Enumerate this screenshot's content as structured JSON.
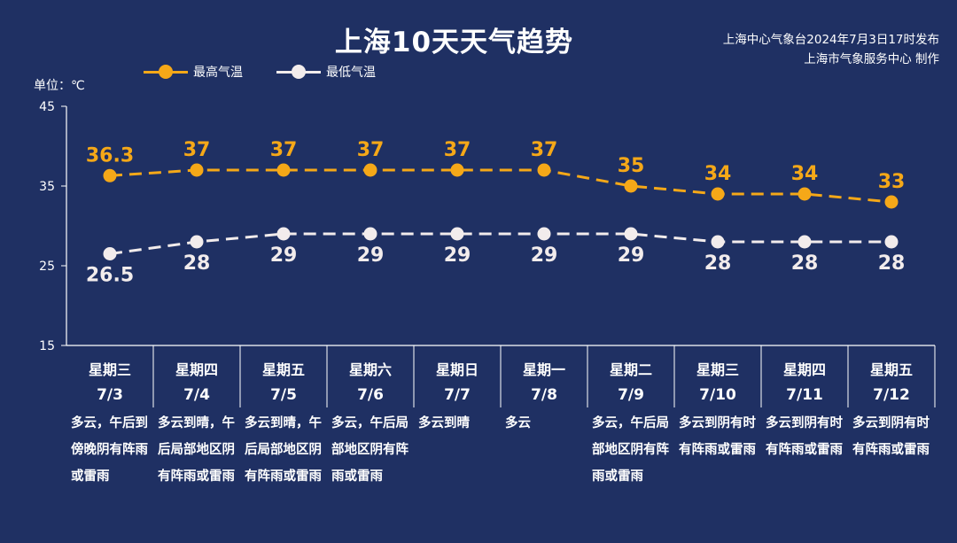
{
  "header": {
    "title": "上海10天天气趋势",
    "source_line1": "上海中心气象台2024年7月3日17时发布",
    "source_line2": "上海市气象服务中心 制作",
    "unit_label": "单位：℃"
  },
  "colors": {
    "background": "#1f3063",
    "high": "#f5a818",
    "low": "#f2ecec",
    "axis": "#ffffff"
  },
  "chart_data": {
    "type": "line",
    "title": "上海10天天气趋势",
    "ylabel": "单位：℃",
    "ylim": [
      15,
      45
    ],
    "yticks": [
      "45",
      "35",
      "25",
      "15"
    ],
    "grid": false,
    "legend_position": "top-left",
    "categories": [
      "7/3",
      "7/4",
      "7/5",
      "7/6",
      "7/7",
      "7/8",
      "7/9",
      "7/10",
      "7/11",
      "7/12"
    ],
    "series": [
      {
        "name": "最高气温",
        "style": "dashed",
        "values": [
          36.3,
          37,
          37,
          37,
          37,
          37,
          35,
          34,
          34,
          33
        ],
        "labels": [
          "36.3",
          "37",
          "37",
          "37",
          "37",
          "37",
          "35",
          "34",
          "34",
          "33"
        ]
      },
      {
        "name": "最低气温",
        "style": "dashed",
        "values": [
          26.5,
          28,
          29,
          29,
          29,
          29,
          29,
          28,
          28,
          28
        ],
        "labels": [
          "26.5",
          "28",
          "29",
          "29",
          "29",
          "29",
          "29",
          "28",
          "28",
          "28"
        ]
      }
    ]
  },
  "days": [
    {
      "weekday": "星期三",
      "date": "7/3",
      "desc": "多云，午后到傍晚阴有阵雨或雷雨"
    },
    {
      "weekday": "星期四",
      "date": "7/4",
      "desc": "多云到晴，午后局部地区阴有阵雨或雷雨"
    },
    {
      "weekday": "星期五",
      "date": "7/5",
      "desc": "多云到晴，午后局部地区阴有阵雨或雷雨"
    },
    {
      "weekday": "星期六",
      "date": "7/6",
      "desc": "多云，午后局部地区阴有阵雨或雷雨"
    },
    {
      "weekday": "星期日",
      "date": "7/7",
      "desc": "多云到晴"
    },
    {
      "weekday": "星期一",
      "date": "7/8",
      "desc": "多云"
    },
    {
      "weekday": "星期二",
      "date": "7/9",
      "desc": "多云，午后局部地区阴有阵雨或雷雨"
    },
    {
      "weekday": "星期三",
      "date": "7/10",
      "desc": "多云到阴有时有阵雨或雷雨"
    },
    {
      "weekday": "星期四",
      "date": "7/11",
      "desc": "多云到阴有时有阵雨或雷雨"
    },
    {
      "weekday": "星期五",
      "date": "7/12",
      "desc": "多云到阴有时有阵雨或雷雨"
    }
  ]
}
